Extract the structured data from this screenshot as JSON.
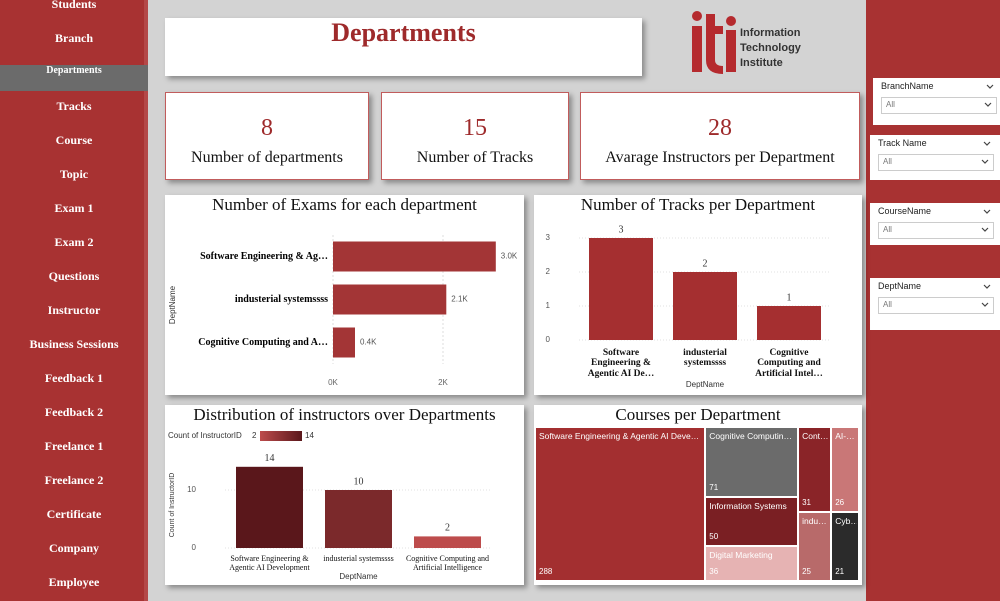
{
  "nav": {
    "items": [
      "Students",
      "Branch",
      "Departments",
      "Tracks",
      "Course",
      "Topic",
      "Exam 1",
      "Exam 2",
      "Questions",
      "Instructor",
      "Business Sessions",
      "Feedback 1",
      "Feedback 2",
      "Freelance 1",
      "Freelance 2",
      "Certificate",
      "Company",
      "Employee"
    ]
  },
  "header": {
    "title": "Departments"
  },
  "logo": {
    "lines": [
      "Information",
      "Technology",
      "Institute"
    ]
  },
  "cards": [
    {
      "value": 8,
      "label": "Number of departments"
    },
    {
      "value": 15,
      "label": "Number of Tracks"
    },
    {
      "value": 28,
      "label": "Avarage  Instructors per Department"
    }
  ],
  "slicers": [
    {
      "label": "BranchName",
      "value": "All"
    },
    {
      "label": "Track Name",
      "value": "All"
    },
    {
      "label": "CourseName",
      "value": "All"
    },
    {
      "label": "DeptName",
      "value": "All"
    }
  ],
  "chart_data": [
    {
      "type": "hbar",
      "title": "Number of Exams for each department",
      "y_label": "DeptName",
      "categories": [
        "Software Engineering & Ag…",
        "industerial systemssss",
        "Cognitive Computing and A…"
      ],
      "values": [
        2960,
        2060,
        400
      ],
      "value_labels": [
        "3.0K",
        "2.1K",
        "0.4K"
      ],
      "color": "#a33536",
      "xlim": [
        0,
        3000
      ],
      "xticks": [
        {
          "value": 0,
          "label": "0K"
        },
        {
          "value": 2000,
          "label": "2K"
        }
      ],
      "grid": true
    },
    {
      "type": "bar",
      "title": "Number of Tracks per Department",
      "x_label": "DeptName",
      "categories": [
        "Software Engineering & Agentic AI De…",
        "industerial systemssss",
        "Cognitive Computing and Artificial Intel…"
      ],
      "values": [
        3,
        2,
        1
      ],
      "color": "#a52f30",
      "ylim": [
        0,
        3
      ],
      "yticks": [
        0,
        1,
        2,
        3
      ],
      "grid": true
    },
    {
      "type": "bar",
      "title": "Distribution of instructors over Departments",
      "x_label": "DeptName",
      "y_label": "Count of InstructorID",
      "legend": {
        "title": "Count of InstructorID",
        "min": 2,
        "max": 14
      },
      "color_scale": [
        "#bd4c4c",
        "#5a171b"
      ],
      "categories": [
        "Software Engineering & Agentic AI Development",
        "industerial systemssss",
        "Cognitive Computing and Artificial Intelligence"
      ],
      "values": [
        14,
        10,
        2
      ],
      "ylim": [
        0,
        15
      ],
      "yticks": [
        0,
        10
      ],
      "grid": true
    },
    {
      "type": "treemap",
      "title": "Courses per Department",
      "categories": [
        "Software Engineering & Agentic AI Deve…",
        "Cognitive Computin…",
        "Information Systems",
        "Digital Marketing",
        "Cont…",
        "AI-…",
        "indu…",
        "Cyb…"
      ],
      "values": [
        288,
        71,
        50,
        36,
        31,
        26,
        25,
        21
      ],
      "colors": [
        "#a32f30",
        "#6b6b6b",
        "#7a1f23",
        "#e6b3b3",
        "#8a2428",
        "#c97777",
        "#b86a6a",
        "#2b2b2b"
      ]
    }
  ]
}
